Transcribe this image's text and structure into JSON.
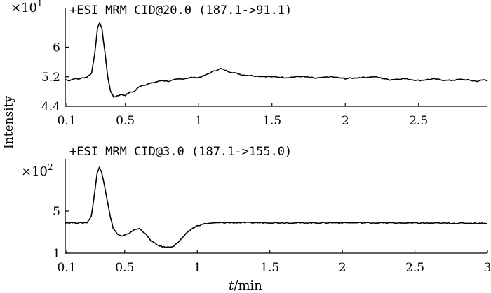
{
  "chart_data": [
    {
      "type": "line",
      "title": "+ESI MRM CID@20.0 (187.1->91.1)",
      "scale_label": "×10",
      "scale_exponent": "1",
      "ylim": [
        4.4,
        6.9
      ],
      "xlim": [
        0.09,
        2.97
      ],
      "yticks": [
        "6",
        "5.2",
        "4.4"
      ],
      "ytick_values": [
        6,
        5.2,
        4.4
      ],
      "xticks": [
        "0.1",
        "0.5",
        "1",
        "1.5",
        "2",
        "2.5"
      ],
      "xtick_values": [
        0.1,
        0.5,
        1,
        1.5,
        2,
        2.5
      ],
      "grid": false,
      "series": [
        {
          "x": [
            0.09,
            0.12,
            0.15,
            0.18,
            0.21,
            0.24,
            0.27,
            0.29,
            0.31,
            0.325,
            0.34,
            0.36,
            0.38,
            0.4,
            0.42,
            0.44,
            0.47,
            0.5,
            0.53,
            0.56,
            0.6,
            0.65,
            0.7,
            0.75,
            0.8,
            0.85,
            0.9,
            0.95,
            1.0,
            1.05,
            1.1,
            1.15,
            1.2,
            1.25,
            1.3,
            1.4,
            1.5,
            1.6,
            1.7,
            1.8,
            1.9,
            2.0,
            2.1,
            2.2,
            2.3,
            2.4,
            2.5,
            2.6,
            2.7,
            2.8,
            2.9,
            2.95,
            2.97
          ],
          "y": [
            5.12,
            5.1,
            5.15,
            5.14,
            5.17,
            5.2,
            5.3,
            5.8,
            6.5,
            6.67,
            6.5,
            5.9,
            5.2,
            4.8,
            4.65,
            4.68,
            4.72,
            4.7,
            4.78,
            4.8,
            4.95,
            5.0,
            5.05,
            5.1,
            5.08,
            5.13,
            5.15,
            5.18,
            5.18,
            5.25,
            5.35,
            5.42,
            5.35,
            5.3,
            5.25,
            5.22,
            5.2,
            5.18,
            5.21,
            5.16,
            5.2,
            5.15,
            5.18,
            5.2,
            5.12,
            5.15,
            5.1,
            5.14,
            5.1,
            5.13,
            5.08,
            5.12,
            5.08
          ]
        }
      ]
    },
    {
      "type": "line",
      "title": "+ESI MRM CID@3.0 (187.1->155.0)",
      "scale_label": "×10",
      "scale_exponent": "2",
      "ylim": [
        1,
        9.4
      ],
      "xlim": [
        0.09,
        3.0
      ],
      "yticks": [
        "5",
        "1"
      ],
      "ytick_values": [
        5,
        1
      ],
      "xticks": [
        "0.1",
        "0.5",
        "1",
        "1.5",
        "2",
        "2.5",
        "3"
      ],
      "xtick_values": [
        0.1,
        0.5,
        1,
        1.5,
        2,
        2.5,
        3
      ],
      "grid": false,
      "series": [
        {
          "x": [
            0.09,
            0.15,
            0.2,
            0.24,
            0.27,
            0.29,
            0.31,
            0.325,
            0.34,
            0.36,
            0.38,
            0.4,
            0.42,
            0.45,
            0.48,
            0.52,
            0.56,
            0.6,
            0.64,
            0.68,
            0.72,
            0.76,
            0.8,
            0.84,
            0.88,
            0.92,
            0.96,
            1.0,
            1.05,
            1.1,
            1.15,
            1.2,
            1.3,
            1.5,
            1.7,
            2.0,
            2.3,
            2.6,
            2.8,
            3.0
          ],
          "y": [
            3.9,
            3.9,
            3.88,
            3.92,
            4.5,
            6.5,
            8.6,
            9.2,
            8.8,
            7.5,
            6.0,
            4.5,
            3.4,
            2.8,
            2.6,
            2.8,
            3.2,
            3.35,
            2.9,
            2.2,
            1.8,
            1.6,
            1.55,
            1.7,
            2.2,
            2.8,
            3.3,
            3.6,
            3.8,
            3.85,
            3.9,
            3.9,
            3.9,
            3.9,
            3.88,
            3.9,
            3.88,
            3.86,
            3.85,
            3.85
          ]
        }
      ]
    }
  ],
  "ylabel": "Intensity",
  "xlabel_var": "t",
  "xlabel_unit": "/min"
}
